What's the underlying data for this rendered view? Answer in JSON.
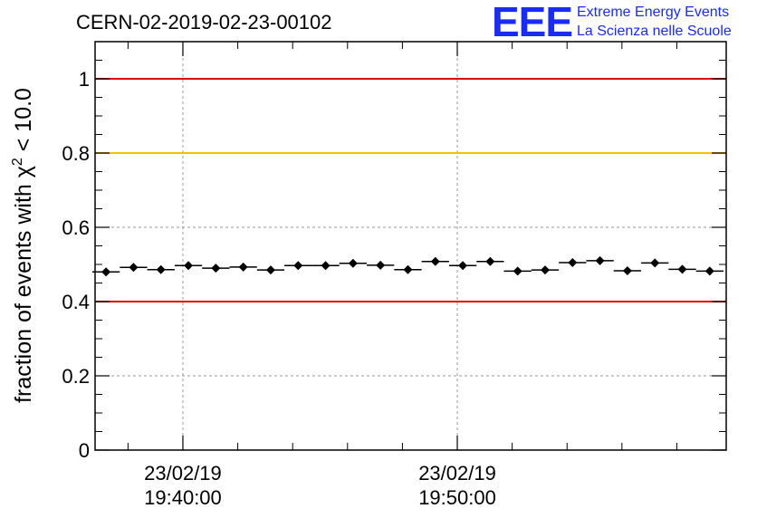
{
  "header": {
    "title": "CERN-02-2019-02-23-00102",
    "logo": {
      "mark": "EEE",
      "line1": "Extreme Energy Events",
      "line2": "La Scienza nelle Scuole",
      "color": "#1a2cf0"
    }
  },
  "chart_data": {
    "type": "scatter",
    "title": "CERN-02-2019-02-23-00102",
    "ylabel_main": "fraction of events with χ",
    "ylabel_sup": "2",
    "ylabel_tail": " < 10.0",
    "ylim": [
      0,
      1.1
    ],
    "yticks": [
      0,
      0.2,
      0.4,
      0.6,
      0.8,
      1
    ],
    "ytick_labels": [
      "0",
      "0.2",
      "0.4",
      "0.6",
      "0.8",
      "1"
    ],
    "xlim_minutes": [
      -3.2,
      19.8
    ],
    "x_unit": "minutes after 23/02/19 19:40:00",
    "xticks": [
      {
        "minutes": 0,
        "date": "23/02/19",
        "time": "19:40:00"
      },
      {
        "minutes": 10,
        "date": "23/02/19",
        "time": "19:50:00"
      }
    ],
    "grid": true,
    "reference_lines": [
      {
        "y": 1.0,
        "color": "#e00000"
      },
      {
        "y": 0.8,
        "color": "#f5c000"
      },
      {
        "y": 0.4,
        "color": "#e00000"
      }
    ],
    "points": {
      "x_minutes": [
        -2.8,
        -1.8,
        -0.8,
        0.2,
        1.2,
        2.2,
        3.2,
        4.2,
        5.2,
        6.2,
        7.2,
        8.2,
        9.2,
        10.2,
        11.2,
        12.2,
        13.2,
        14.2,
        15.2,
        16.2,
        17.2,
        18.2,
        19.2
      ],
      "x_halfwidth_minutes": 0.5,
      "y": [
        0.48,
        0.492,
        0.486,
        0.497,
        0.49,
        0.493,
        0.485,
        0.497,
        0.497,
        0.503,
        0.498,
        0.486,
        0.508,
        0.497,
        0.508,
        0.482,
        0.485,
        0.505,
        0.51,
        0.483,
        0.504,
        0.487,
        0.482
      ],
      "marker_color": "#000000"
    }
  }
}
